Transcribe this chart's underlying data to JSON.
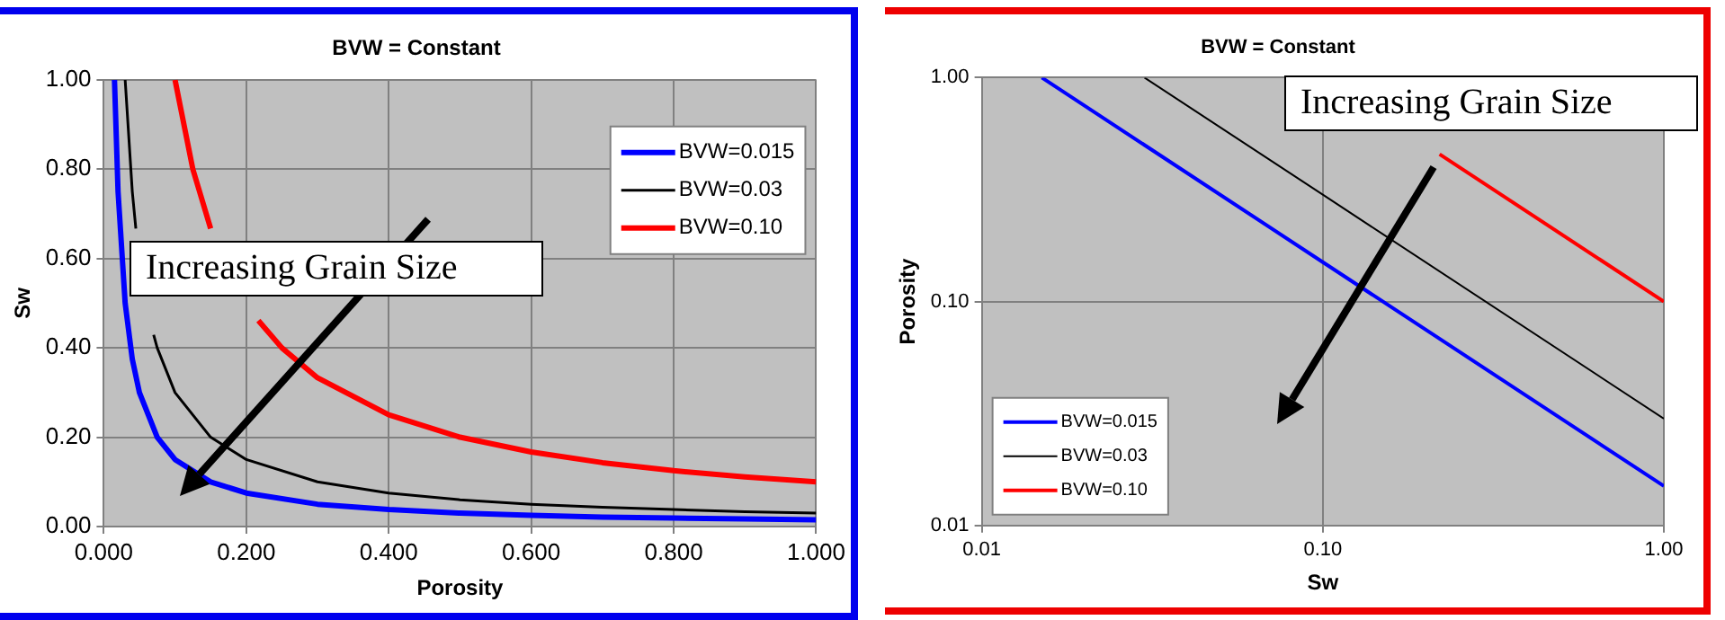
{
  "chart_data": [
    {
      "type": "line",
      "title": "BVW = Constant",
      "xlabel": "Porosity",
      "ylabel": "Sw",
      "xlim": [
        0,
        1
      ],
      "ylim": [
        0,
        1
      ],
      "xticks": [
        {
          "value": 0,
          "label": "0.000"
        },
        {
          "value": 0.2,
          "label": "0.200"
        },
        {
          "value": 0.4,
          "label": "0.400"
        },
        {
          "value": 0.6,
          "label": "0.600"
        },
        {
          "value": 0.8,
          "label": "0.800"
        },
        {
          "value": 1,
          "label": "1.000"
        }
      ],
      "yticks": [
        {
          "value": 0,
          "label": "0.00"
        },
        {
          "value": 0.2,
          "label": "0.20"
        },
        {
          "value": 0.4,
          "label": "0.40"
        },
        {
          "value": 0.6,
          "label": "0.60"
        },
        {
          "value": 0.8,
          "label": "0.80"
        },
        {
          "value": 1,
          "label": "1.00"
        }
      ],
      "grid": true,
      "legend": "top right",
      "marker": "none",
      "line_style": "solid",
      "annotations": [
        "Increasing Grain Size"
      ],
      "series": [
        {
          "name": "BVW=0.015",
          "color": "#0000ff",
          "x": [
            0.015,
            0.02,
            0.03,
            0.04,
            0.05,
            0.075,
            0.1,
            0.15,
            0.2,
            0.3,
            0.4,
            0.5,
            0.6,
            0.7,
            0.8,
            0.9,
            1
          ],
          "values": [
            1,
            0.75,
            0.5,
            0.375,
            0.3,
            0.2,
            0.15,
            0.1,
            0.075,
            0.05,
            0.038,
            0.03,
            0.025,
            0.021,
            0.019,
            0.017,
            0.015
          ]
        },
        {
          "name": "BVW=0.03",
          "color": "#000000",
          "x": [
            0.03,
            0.04,
            0.045,
            0.05,
            0.07,
            0.075,
            0.1,
            0.15,
            0.2,
            0.3,
            0.4,
            0.5,
            0.6,
            0.7,
            0.8,
            0.9,
            1
          ],
          "values": [
            1,
            0.75,
            0.667,
            null,
            0.429,
            0.4,
            0.3,
            0.2,
            0.15,
            0.1,
            0.075,
            0.06,
            0.05,
            0.043,
            0.038,
            0.033,
            0.03
          ]
        },
        {
          "name": "BVW=0.10",
          "color": "#ff0000",
          "x": [
            0.1,
            0.125,
            0.15,
            0.2,
            0.217,
            0.25,
            0.3,
            0.4,
            0.5,
            0.6,
            0.7,
            0.8,
            0.9,
            1
          ],
          "values": [
            1,
            0.8,
            0.667,
            null,
            0.461,
            0.4,
            0.333,
            0.25,
            0.2,
            0.167,
            0.143,
            0.125,
            0.111,
            0.1
          ]
        }
      ]
    },
    {
      "type": "line",
      "title": "BVW = Constant",
      "xlabel": "Sw",
      "ylabel": "Porosity",
      "log": "xy",
      "xlim": [
        0.01,
        1
      ],
      "ylim": [
        0.01,
        1
      ],
      "xticks": [
        {
          "value": 0.01,
          "label": "0.01"
        },
        {
          "value": 0.1,
          "label": "0.10"
        },
        {
          "value": 1,
          "label": "1.00"
        }
      ],
      "yticks": [
        {
          "value": 0.01,
          "label": "0.01"
        },
        {
          "value": 0.1,
          "label": "0.10"
        },
        {
          "value": 1,
          "label": "1.00"
        }
      ],
      "grid": true,
      "legend": "bottom left",
      "marker": "none",
      "line_style": "solid",
      "annotations": [
        "Increasing Grain Size"
      ],
      "series": [
        {
          "name": "BVW=0.015",
          "color": "#0000ff",
          "x": [
            0.015,
            0.1,
            1
          ],
          "values": [
            1,
            0.15,
            0.015
          ]
        },
        {
          "name": "BVW=0.03",
          "color": "#000000",
          "x": [
            0.03,
            0.1,
            1
          ],
          "values": [
            1,
            0.3,
            0.03
          ]
        },
        {
          "name": "BVW=0.10",
          "color": "#ff0000",
          "x": [
            0.22,
            1
          ],
          "values": [
            0.455,
            0.1
          ]
        }
      ]
    }
  ]
}
